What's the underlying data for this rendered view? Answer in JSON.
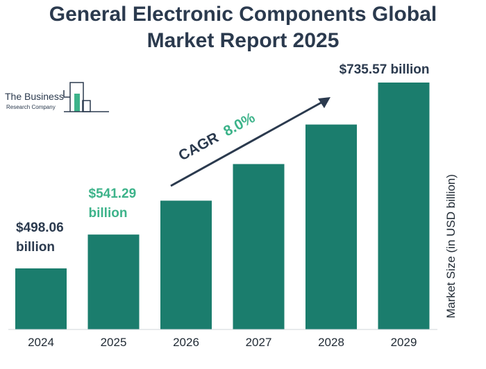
{
  "title_lines": [
    "General Electronic Components Global",
    "Market Report 2025"
  ],
  "logo": {
    "line1": "The Business",
    "line2": "Research Company"
  },
  "cagr": {
    "label": "CAGR",
    "value": "8.0%"
  },
  "colors": {
    "bar": "#1b7d6d",
    "dark_text": "#2b3a4e",
    "accent": "#3db38a",
    "axis": "#cfd5da"
  },
  "chart_data": {
    "type": "bar",
    "title": "General Electronic Components Global Market Report 2025",
    "categories": [
      "2024",
      "2025",
      "2026",
      "2027",
      "2028",
      "2029"
    ],
    "values": [
      498.06,
      541.29,
      584.6,
      631.4,
      681.9,
      735.57
    ],
    "ylabel": "Market Size (in USD billion)",
    "ylim": [
      420,
      750
    ],
    "grid": false,
    "data_labels": [
      {
        "index": 0,
        "lines": [
          "$498.06",
          "billion"
        ],
        "color": "#2b3a4e"
      },
      {
        "index": 1,
        "lines": [
          "$541.29",
          "billion"
        ],
        "color": "#3db38a"
      },
      {
        "index": 5,
        "lines": [
          "$735.57 billion"
        ],
        "color": "#2b3a4e"
      }
    ]
  }
}
